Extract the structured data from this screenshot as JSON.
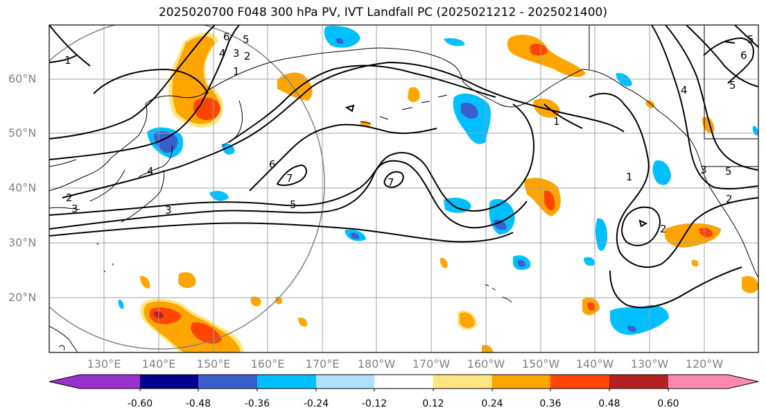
{
  "title": "2025020700 F048 300 hPa PV, IVT Landfall PC (2025021212 - 2025021400)",
  "lat_labels": [
    "60°N",
    "50°N",
    "40°N",
    "30°N",
    "20°N"
  ],
  "lon_labels": [
    "130°E",
    "140°E",
    "150°E",
    "160°E",
    "170°E",
    "180°W",
    "170°W",
    "160°W",
    "150°W",
    "140°W",
    "130°W",
    "120°W"
  ],
  "colorbar": {
    "ticks": [
      "-0.60",
      "-0.48",
      "-0.36",
      "-0.24",
      "-0.12",
      "0.12",
      "0.24",
      "0.36",
      "0.48",
      "0.60"
    ],
    "colors": [
      "#9932CC",
      "#00008B",
      "#3A5FCD",
      "#00BFFF",
      "#B0E2FF",
      "#FFFFFF",
      "#FFE680",
      "#FFA500",
      "#FF4500",
      "#B22222",
      "#FF88B0"
    ]
  },
  "contour_labels": [
    "6",
    "5",
    "4",
    "3",
    "2",
    "1",
    "1",
    "1",
    "2",
    "3",
    "4",
    "5",
    "6",
    "5",
    "4",
    "3",
    "2",
    "1",
    "2",
    "5",
    "3",
    "7",
    "7",
    "6",
    "5"
  ],
  "colors": {
    "grid": "#a0a0a0",
    "contour": "#000000",
    "coast": "#000000",
    "circle": "#808080"
  }
}
